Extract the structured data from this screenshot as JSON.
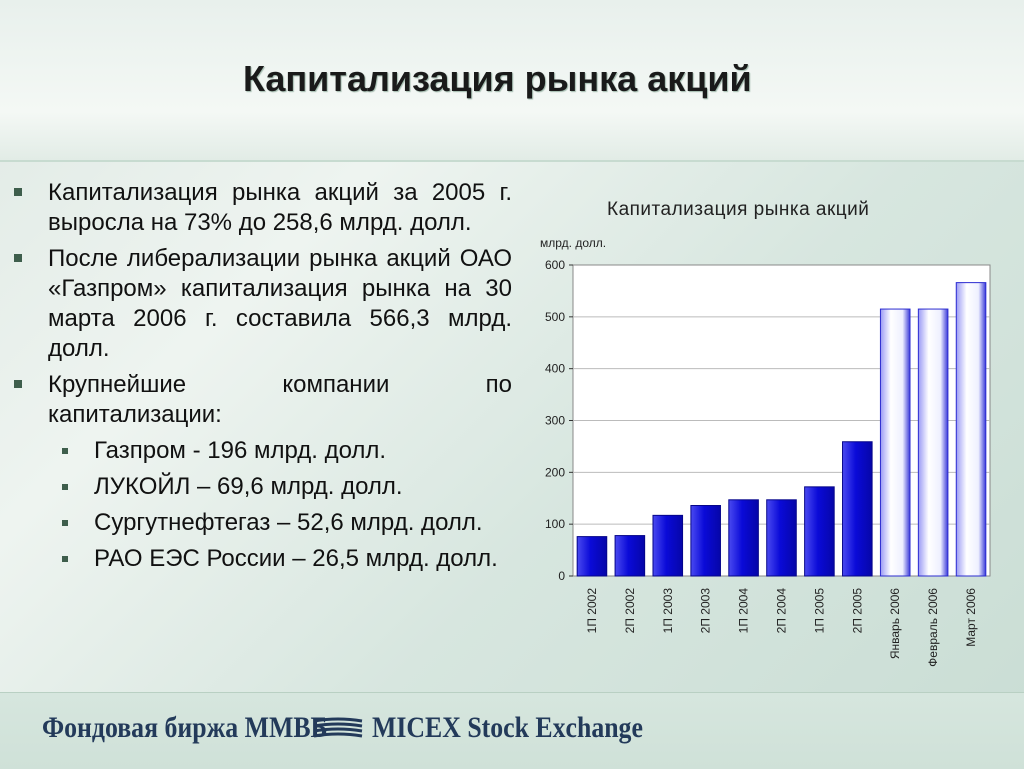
{
  "title": "Капитализация рынка акций",
  "bullets": [
    {
      "text": "Капитализация рынка акций за 2005 г. выросла на 73% до 258,6 млрд. долл."
    },
    {
      "text": "После либерализации рынка акций ОАО «Газпром» капитализация рынка на 30 марта 2006 г. составила 566,3 млрд. долл."
    },
    {
      "text": "Крупнейшие компании по капитализации:"
    }
  ],
  "sub_bullets": [
    {
      "text": "Газпром - 196 млрд. долл."
    },
    {
      "text": "ЛУКОЙЛ – 69,6 млрд. долл."
    },
    {
      "text": "Сургутнефтегаз – 52,6 млрд. долл."
    },
    {
      "text": "РАО ЕЭС России – 26,5 млрд. долл."
    }
  ],
  "footer": {
    "left": "Фондовая биржа ММВБ",
    "right": "MICEX Stock Exchange",
    "logo_icon": "micex-logo-icon"
  },
  "colors": {
    "bar_dark": "#0a0ad8",
    "bar_light": "#ffffff",
    "bar_edge": "#2b2bd0",
    "grid": "#bbbbbb",
    "marker": "#3e5e4c"
  },
  "chart_data": {
    "type": "bar",
    "title": "Капитализация рынка акций",
    "ylabel": "млрд. долл.",
    "xlabel": "",
    "ylim": [
      0,
      600
    ],
    "yticks": [
      0,
      100,
      200,
      300,
      400,
      500,
      600
    ],
    "grid": true,
    "categories": [
      "1П 2002",
      "2П 2002",
      "1П 2003",
      "2П 2003",
      "1П 2004",
      "2П 2004",
      "1П 2005",
      "2П 2005",
      "Январь 2006",
      "Февраль 2006",
      "Март 2006"
    ],
    "values": [
      76,
      78,
      117,
      136,
      147,
      147,
      172,
      259,
      515,
      515,
      566
    ],
    "bar_style": [
      "dark",
      "dark",
      "dark",
      "dark",
      "dark",
      "dark",
      "dark",
      "dark",
      "light",
      "light",
      "light"
    ]
  }
}
